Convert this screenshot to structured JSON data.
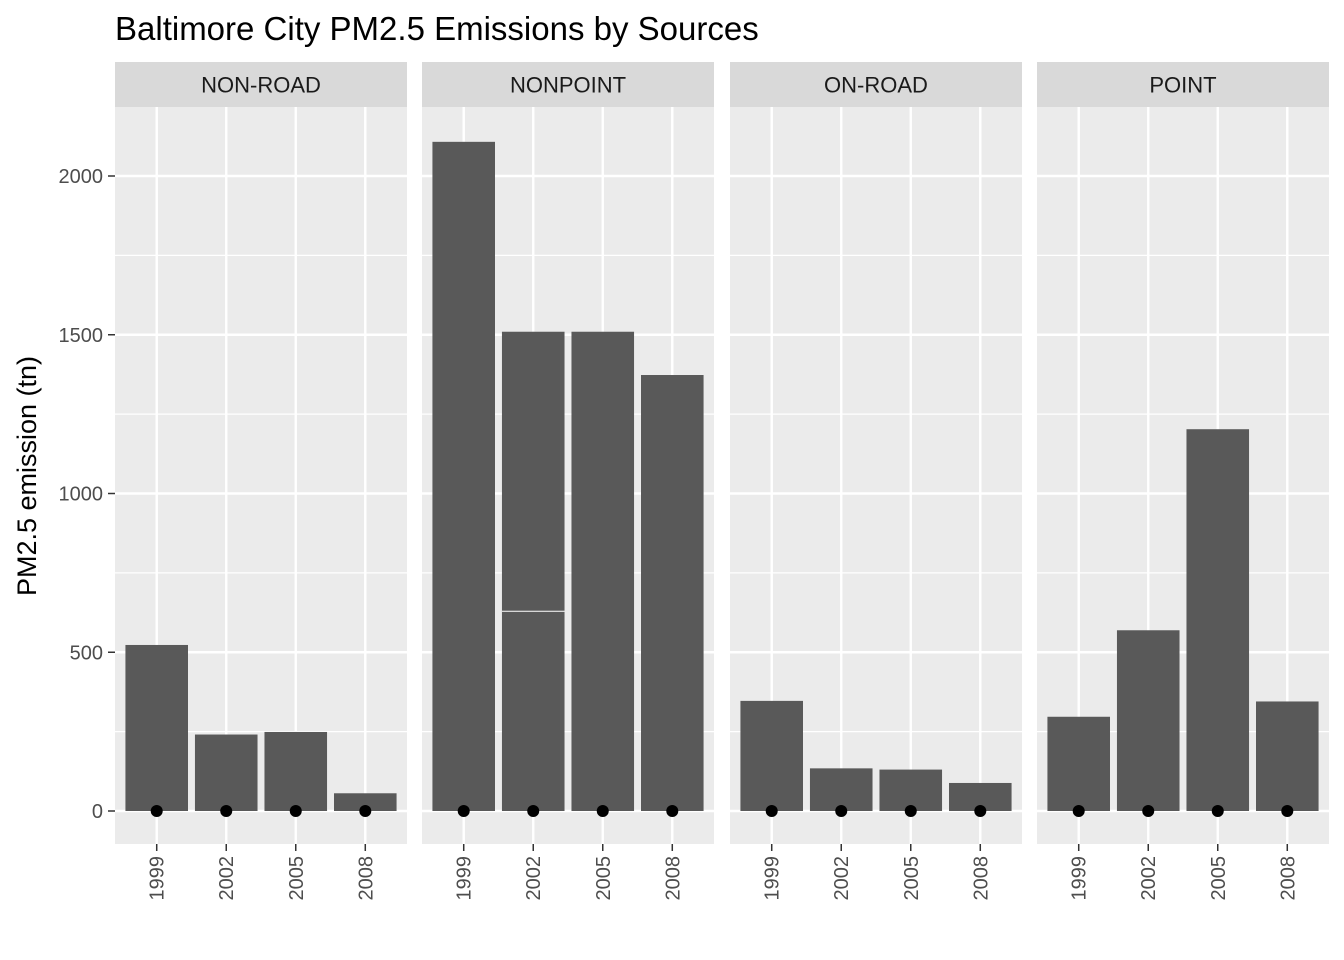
{
  "chart_data": {
    "type": "bar",
    "title": "Baltimore City PM2.5 Emissions by Sources",
    "xlabel": "",
    "ylabel": "PM2.5 emission (tn)",
    "ylim": [
      -100,
      2200
    ],
    "yticks": [
      0,
      500,
      1000,
      1500,
      2000
    ],
    "categories": [
      "1999",
      "2002",
      "2005",
      "2008"
    ],
    "grid": true,
    "facets": [
      {
        "name": "NON-ROAD",
        "values": [
          522.94,
          240.85,
          248.93,
          55.82
        ]
      },
      {
        "name": "NONPOINT",
        "values": [
          2107.63,
          1509.5,
          1509.5,
          1373.21
        ],
        "segment_dividers": [
          null,
          629.0,
          null,
          null
        ]
      },
      {
        "name": "ON-ROAD",
        "values": [
          346.82,
          134.31,
          130.43,
          88.28
        ]
      },
      {
        "name": "POINT",
        "values": [
          296.8,
          569.26,
          1202.49,
          344.98
        ]
      }
    ],
    "point_markers": {
      "y": 0,
      "color": "#000000"
    },
    "colors": {
      "bar": "#595959",
      "panel": "#ebebeb",
      "strip": "#d9d9d9",
      "grid": "#ffffff"
    }
  }
}
